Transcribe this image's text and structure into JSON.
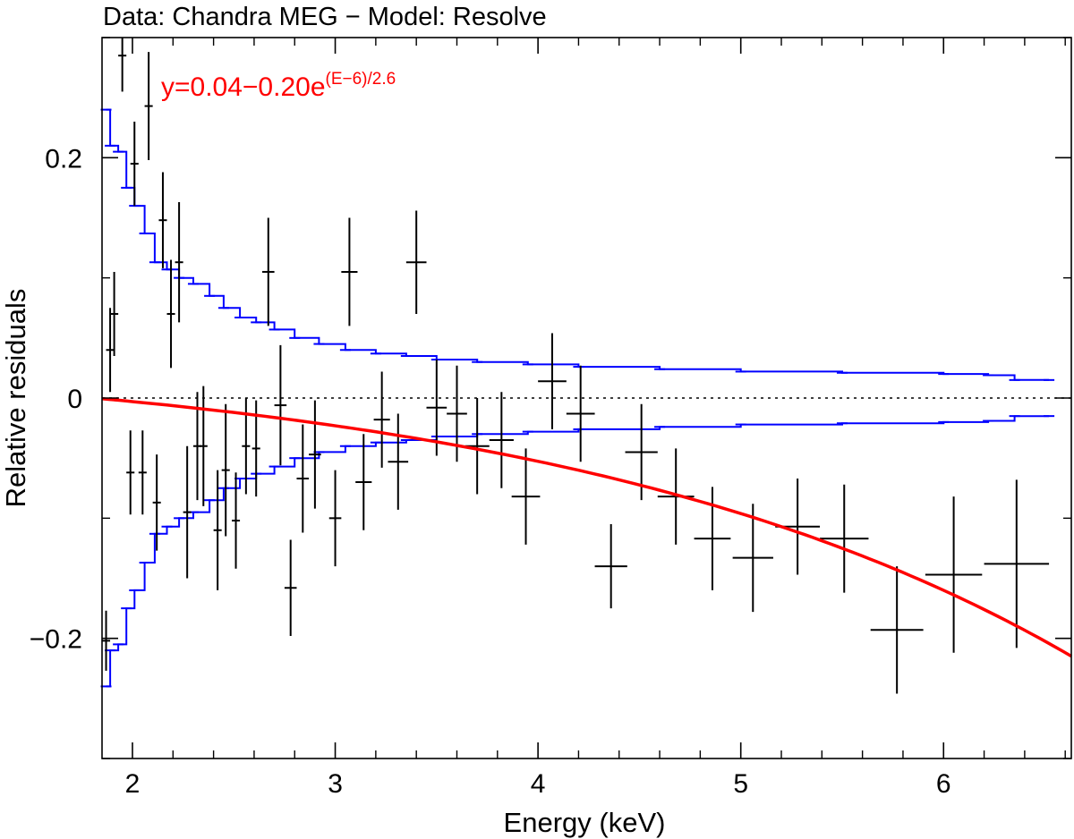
{
  "chart_data": {
    "type": "scatter",
    "title": "Data: Chandra MEG − Model: Resolve",
    "xlabel": "Energy (keV)",
    "ylabel": "Relative residuals",
    "xlim": [
      1.85,
      6.63
    ],
    "ylim": [
      -0.3,
      0.3
    ],
    "x_ticks": [
      2,
      3,
      4,
      5,
      6
    ],
    "x_tick_labels": [
      "2",
      "3",
      "4",
      "5",
      "6"
    ],
    "y_ticks": [
      -0.2,
      0,
      0.2
    ],
    "y_tick_labels": [
      "−0.2",
      "0",
      "0.2"
    ],
    "reference_line": {
      "y": 0,
      "style": "dotted"
    },
    "annotation": {
      "base": "y=0.04−0.20e",
      "exponent": "(E−6)/2.6",
      "color": "#ff0000"
    },
    "colors": {
      "data": "#000000",
      "envelope": "#0000ff",
      "fit": "#ff0000"
    },
    "fit_curve": {
      "name": "fit",
      "formula": "0.04-0.20*exp((E-6)/2.6)",
      "a": 0.04,
      "b": 0.2,
      "e0": 6,
      "scale": 2.6
    },
    "series": [
      {
        "name": "residuals",
        "points": [
          {
            "x": 1.87,
            "xerr": 0.02,
            "y": -0.202,
            "yerr": 0.025
          },
          {
            "x": 1.89,
            "xerr": 0.02,
            "y": 0.04,
            "yerr": 0.035
          },
          {
            "x": 1.91,
            "xerr": 0.02,
            "y": 0.07,
            "yerr": 0.035
          },
          {
            "x": 1.95,
            "xerr": 0.02,
            "y": 0.285,
            "yerr": 0.03
          },
          {
            "x": 1.99,
            "xerr": 0.02,
            "y": -0.062,
            "yerr": 0.035
          },
          {
            "x": 2.01,
            "xerr": 0.02,
            "y": 0.195,
            "yerr": 0.035
          },
          {
            "x": 2.05,
            "xerr": 0.02,
            "y": -0.062,
            "yerr": 0.035
          },
          {
            "x": 2.08,
            "xerr": 0.02,
            "y": 0.243,
            "yerr": 0.045
          },
          {
            "x": 2.12,
            "xerr": 0.02,
            "y": -0.087,
            "yerr": 0.04
          },
          {
            "x": 2.15,
            "xerr": 0.02,
            "y": 0.148,
            "yerr": 0.04
          },
          {
            "x": 2.19,
            "xerr": 0.02,
            "y": 0.07,
            "yerr": 0.045
          },
          {
            "x": 2.23,
            "xerr": 0.02,
            "y": 0.113,
            "yerr": 0.05
          },
          {
            "x": 2.27,
            "xerr": 0.02,
            "y": -0.095,
            "yerr": 0.055
          },
          {
            "x": 2.32,
            "xerr": 0.02,
            "y": -0.04,
            "yerr": 0.045
          },
          {
            "x": 2.35,
            "xerr": 0.02,
            "y": -0.04,
            "yerr": 0.05
          },
          {
            "x": 2.42,
            "xerr": 0.02,
            "y": -0.11,
            "yerr": 0.05
          },
          {
            "x": 2.46,
            "xerr": 0.02,
            "y": -0.06,
            "yerr": 0.055
          },
          {
            "x": 2.51,
            "xerr": 0.02,
            "y": -0.102,
            "yerr": 0.04
          },
          {
            "x": 2.56,
            "xerr": 0.02,
            "y": -0.04,
            "yerr": 0.04
          },
          {
            "x": 2.61,
            "xerr": 0.02,
            "y": -0.042,
            "yerr": 0.04
          },
          {
            "x": 2.67,
            "xerr": 0.03,
            "y": 0.105,
            "yerr": 0.045
          },
          {
            "x": 2.73,
            "xerr": 0.03,
            "y": -0.006,
            "yerr": 0.05
          },
          {
            "x": 2.78,
            "xerr": 0.03,
            "y": -0.158,
            "yerr": 0.04
          },
          {
            "x": 2.84,
            "xerr": 0.03,
            "y": -0.067,
            "yerr": 0.045
          },
          {
            "x": 2.9,
            "xerr": 0.03,
            "y": -0.047,
            "yerr": 0.045
          },
          {
            "x": 3.0,
            "xerr": 0.03,
            "y": -0.1,
            "yerr": 0.04
          },
          {
            "x": 3.07,
            "xerr": 0.04,
            "y": 0.105,
            "yerr": 0.045
          },
          {
            "x": 3.14,
            "xerr": 0.04,
            "y": -0.07,
            "yerr": 0.04
          },
          {
            "x": 3.23,
            "xerr": 0.04,
            "y": -0.018,
            "yerr": 0.04
          },
          {
            "x": 3.31,
            "xerr": 0.05,
            "y": -0.053,
            "yerr": 0.04
          },
          {
            "x": 3.4,
            "xerr": 0.05,
            "y": 0.113,
            "yerr": 0.043
          },
          {
            "x": 3.5,
            "xerr": 0.05,
            "y": -0.008,
            "yerr": 0.04
          },
          {
            "x": 3.6,
            "xerr": 0.05,
            "y": -0.013,
            "yerr": 0.04
          },
          {
            "x": 3.7,
            "xerr": 0.06,
            "y": -0.04,
            "yerr": 0.04
          },
          {
            "x": 3.82,
            "xerr": 0.06,
            "y": -0.035,
            "yerr": 0.04
          },
          {
            "x": 3.94,
            "xerr": 0.07,
            "y": -0.082,
            "yerr": 0.04
          },
          {
            "x": 4.07,
            "xerr": 0.07,
            "y": 0.014,
            "yerr": 0.04
          },
          {
            "x": 4.21,
            "xerr": 0.07,
            "y": -0.013,
            "yerr": 0.04
          },
          {
            "x": 4.36,
            "xerr": 0.08,
            "y": -0.14,
            "yerr": 0.035
          },
          {
            "x": 4.51,
            "xerr": 0.08,
            "y": -0.045,
            "yerr": 0.04
          },
          {
            "x": 4.68,
            "xerr": 0.09,
            "y": -0.082,
            "yerr": 0.04
          },
          {
            "x": 4.86,
            "xerr": 0.09,
            "y": -0.117,
            "yerr": 0.043
          },
          {
            "x": 5.06,
            "xerr": 0.1,
            "y": -0.133,
            "yerr": 0.045
          },
          {
            "x": 5.28,
            "xerr": 0.11,
            "y": -0.107,
            "yerr": 0.04
          },
          {
            "x": 5.51,
            "xerr": 0.12,
            "y": -0.117,
            "yerr": 0.045
          },
          {
            "x": 5.77,
            "xerr": 0.13,
            "y": -0.193,
            "yerr": 0.053
          },
          {
            "x": 6.05,
            "xerr": 0.14,
            "y": -0.147,
            "yerr": 0.065
          },
          {
            "x": 6.36,
            "xerr": 0.16,
            "y": -0.138,
            "yerr": 0.07
          }
        ]
      },
      {
        "name": "envelope",
        "points": [
          {
            "x": 1.87,
            "y": 0.24
          },
          {
            "x": 1.89,
            "y": 0.21
          },
          {
            "x": 1.93,
            "y": 0.205
          },
          {
            "x": 1.97,
            "y": 0.175
          },
          {
            "x": 2.01,
            "y": 0.16
          },
          {
            "x": 2.06,
            "y": 0.137
          },
          {
            "x": 2.11,
            "y": 0.113
          },
          {
            "x": 2.17,
            "y": 0.107
          },
          {
            "x": 2.23,
            "y": 0.1
          },
          {
            "x": 2.3,
            "y": 0.095
          },
          {
            "x": 2.38,
            "y": 0.085
          },
          {
            "x": 2.45,
            "y": 0.075
          },
          {
            "x": 2.53,
            "y": 0.067
          },
          {
            "x": 2.61,
            "y": 0.063
          },
          {
            "x": 2.7,
            "y": 0.057
          },
          {
            "x": 2.8,
            "y": 0.05
          },
          {
            "x": 2.92,
            "y": 0.045
          },
          {
            "x": 3.05,
            "y": 0.04
          },
          {
            "x": 3.2,
            "y": 0.037
          },
          {
            "x": 3.35,
            "y": 0.035
          },
          {
            "x": 3.5,
            "y": 0.032
          },
          {
            "x": 3.7,
            "y": 0.03
          },
          {
            "x": 3.95,
            "y": 0.028
          },
          {
            "x": 4.2,
            "y": 0.026
          },
          {
            "x": 4.6,
            "y": 0.024
          },
          {
            "x": 5.0,
            "y": 0.022
          },
          {
            "x": 5.5,
            "y": 0.021
          },
          {
            "x": 6.0,
            "y": 0.02
          },
          {
            "x": 6.22,
            "y": 0.019
          },
          {
            "x": 6.35,
            "y": 0.015
          },
          {
            "x": 6.52,
            "y": 0.015
          }
        ]
      }
    ]
  }
}
